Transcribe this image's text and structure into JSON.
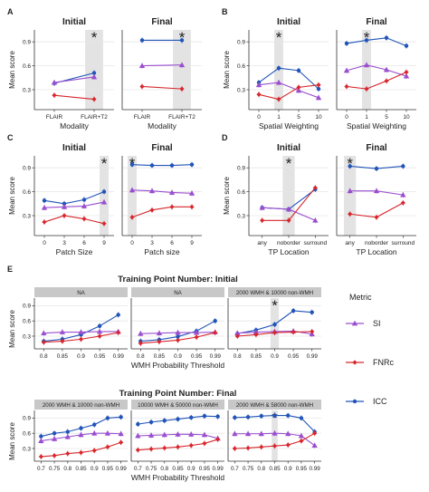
{
  "colors": {
    "SI": "#9a4fcf",
    "FNRc": "#d7262c",
    "ICC": "#2054b8",
    "grid": "#e6e6e6",
    "strip": "#c8c8c8",
    "shade": "#e3e3e3",
    "axis": "#333333"
  },
  "legend": {
    "title": "Metric",
    "items": [
      {
        "key": "SI",
        "label": "SI"
      },
      {
        "key": "FNRc",
        "label": "FNRc"
      },
      {
        "key": "ICC",
        "label": "ICC"
      }
    ]
  },
  "star": "*",
  "panels": [
    {
      "letter": "A",
      "subtitles": [
        "Initial",
        "Final"
      ],
      "xlabels": [
        "Modality",
        "Modality"
      ],
      "ylabel": "Mean score",
      "yticks": [
        0.3,
        0.6,
        0.9
      ],
      "categories": [
        "FLAIR",
        "FLAIR+T2"
      ],
      "star_index": 1
    },
    {
      "letter": "B",
      "subtitles": [
        "Initial",
        "Final"
      ],
      "xlabels": [
        "Spatial Weighting",
        "Spatial Weighting"
      ],
      "ylabel": "Mean score",
      "yticks": [
        0.3,
        0.6,
        0.9
      ],
      "categories": [
        "0",
        "1",
        "5",
        "10"
      ],
      "star_index": 1
    },
    {
      "letter": "C",
      "subtitles": [
        "Initial",
        "Final"
      ],
      "xlabels": [
        "Patch Size",
        "Patch size"
      ],
      "ylabel": "Mean score",
      "yticks": [
        0.3,
        0.6,
        0.9
      ],
      "categories": [
        "0",
        "3",
        "6",
        "9"
      ],
      "star_index": [
        3,
        0
      ]
    },
    {
      "letter": "D",
      "subtitles": [
        "Initial",
        "Final"
      ],
      "xlabels": [
        "TP Location",
        "TP Location"
      ],
      "ylabel": "Mean score",
      "yticks": [
        0.3,
        0.6,
        0.9
      ],
      "categories": [
        "any",
        "noborder",
        "surround"
      ],
      "star_index": [
        1,
        0
      ]
    },
    {
      "letter": "E",
      "titles": [
        "Training Point Number: Initial",
        "Training Point Number: Final"
      ],
      "strips_top": [
        "NA",
        "NA",
        "2000 WMH & 10000 non-WMH"
      ],
      "strips_bottom": [
        "2000 WMH & 10000 non-WMH",
        "10000 WMH & 50000 non-WMH",
        "2000 WMH & 58000 non-WMH"
      ],
      "xlabel": "WMH Probability Threshold",
      "ylabel": "Mean score",
      "yticks": [
        0.3,
        0.6,
        0.9
      ],
      "categories_top": [
        "0.8",
        "0.85",
        "0.9",
        "0.95",
        "0.99"
      ],
      "categories_bottom": [
        "0.7",
        "0.75",
        "0.8",
        "0.85",
        "0.9",
        "0.95",
        "0.99"
      ]
    }
  ],
  "chart_data": [
    {
      "type": "line",
      "panel": "A",
      "subtitle": "Initial",
      "xlabel": "Modality",
      "ylabel": "Mean score",
      "categories": [
        "FLAIR",
        "FLAIR+T2"
      ],
      "ylim": [
        0.05,
        1.05
      ],
      "series": [
        {
          "name": "ICC",
          "values": [
            0.38,
            0.51
          ]
        },
        {
          "name": "SI",
          "values": [
            0.39,
            0.46
          ]
        },
        {
          "name": "FNRc",
          "values": [
            0.23,
            0.18
          ]
        }
      ]
    },
    {
      "type": "line",
      "panel": "A",
      "subtitle": "Final",
      "xlabel": "Modality",
      "ylabel": "Mean score",
      "categories": [
        "FLAIR",
        "FLAIR+T2"
      ],
      "ylim": [
        0.05,
        1.05
      ],
      "series": [
        {
          "name": "ICC",
          "values": [
            0.92,
            0.92
          ]
        },
        {
          "name": "SI",
          "values": [
            0.6,
            0.61
          ]
        },
        {
          "name": "FNRc",
          "values": [
            0.34,
            0.31
          ]
        }
      ]
    },
    {
      "type": "line",
      "panel": "B",
      "subtitle": "Initial",
      "xlabel": "Spatial Weighting",
      "ylabel": "Mean score",
      "categories": [
        "0",
        "1",
        "5",
        "10"
      ],
      "ylim": [
        0.05,
        1.05
      ],
      "series": [
        {
          "name": "ICC",
          "values": [
            0.39,
            0.57,
            0.54,
            0.31
          ]
        },
        {
          "name": "SI",
          "values": [
            0.36,
            0.39,
            0.29,
            0.2
          ]
        },
        {
          "name": "FNRc",
          "values": [
            0.24,
            0.18,
            0.33,
            0.36
          ]
        }
      ]
    },
    {
      "type": "line",
      "panel": "B",
      "subtitle": "Final",
      "xlabel": "Spatial Weighting",
      "ylabel": "Mean score",
      "categories": [
        "0",
        "1",
        "5",
        "10"
      ],
      "ylim": [
        0.05,
        1.05
      ],
      "series": [
        {
          "name": "ICC",
          "values": [
            0.88,
            0.92,
            0.95,
            0.85
          ]
        },
        {
          "name": "SI",
          "values": [
            0.54,
            0.61,
            0.55,
            0.47
          ]
        },
        {
          "name": "FNRc",
          "values": [
            0.34,
            0.31,
            0.41,
            0.52
          ]
        }
      ]
    },
    {
      "type": "line",
      "panel": "C",
      "subtitle": "Initial",
      "xlabel": "Patch Size",
      "ylabel": "Mean score",
      "categories": [
        "0",
        "3",
        "6",
        "9"
      ],
      "ylim": [
        0.05,
        1.05
      ],
      "series": [
        {
          "name": "ICC",
          "values": [
            0.49,
            0.45,
            0.5,
            0.6
          ]
        },
        {
          "name": "SI",
          "values": [
            0.4,
            0.41,
            0.42,
            0.47
          ]
        },
        {
          "name": "FNRc",
          "values": [
            0.22,
            0.3,
            0.26,
            0.2
          ]
        }
      ]
    },
    {
      "type": "line",
      "panel": "C",
      "subtitle": "Final",
      "xlabel": "Patch size",
      "ylabel": "Mean score",
      "categories": [
        "0",
        "3",
        "6",
        "9"
      ],
      "ylim": [
        0.05,
        1.05
      ],
      "series": [
        {
          "name": "ICC",
          "values": [
            0.94,
            0.93,
            0.93,
            0.94
          ]
        },
        {
          "name": "SI",
          "values": [
            0.62,
            0.61,
            0.59,
            0.58
          ]
        },
        {
          "name": "FNRc",
          "values": [
            0.28,
            0.37,
            0.41,
            0.41
          ]
        }
      ]
    },
    {
      "type": "line",
      "panel": "D",
      "subtitle": "Initial",
      "xlabel": "TP Location",
      "ylabel": "Mean score",
      "categories": [
        "any",
        "noborder",
        "surround"
      ],
      "ylim": [
        0.05,
        1.05
      ],
      "series": [
        {
          "name": "ICC",
          "values": [
            0.4,
            0.38,
            0.63
          ]
        },
        {
          "name": "SI",
          "values": [
            0.4,
            0.38,
            0.24
          ]
        },
        {
          "name": "FNRc",
          "values": [
            0.24,
            0.24,
            0.65
          ]
        }
      ]
    },
    {
      "type": "line",
      "panel": "D",
      "subtitle": "Final",
      "xlabel": "TP Location",
      "ylabel": "Mean score",
      "categories": [
        "any",
        "noborder",
        "surround"
      ],
      "ylim": [
        0.05,
        1.05
      ],
      "series": [
        {
          "name": "ICC",
          "values": [
            0.92,
            0.89,
            0.92
          ]
        },
        {
          "name": "SI",
          "values": [
            0.61,
            0.61,
            0.56
          ]
        },
        {
          "name": "FNRc",
          "values": [
            0.32,
            0.28,
            0.46
          ]
        }
      ]
    },
    {
      "type": "line",
      "panel": "E",
      "title": "Training Point Number: Initial",
      "strip": "NA",
      "xlabel": "WMH Probability Threshold",
      "ylabel": "Mean score",
      "categories": [
        "0.8",
        "0.85",
        "0.9",
        "0.95",
        "0.99"
      ],
      "ylim": [
        0.05,
        1.05
      ],
      "series": [
        {
          "name": "ICC",
          "values": [
            0.2,
            0.24,
            0.33,
            0.5,
            0.72
          ]
        },
        {
          "name": "SI",
          "values": [
            0.36,
            0.38,
            0.38,
            0.39,
            0.39
          ]
        },
        {
          "name": "FNRc",
          "values": [
            0.18,
            0.2,
            0.24,
            0.3,
            0.37
          ]
        }
      ]
    },
    {
      "type": "line",
      "panel": "E",
      "title": "Training Point Number: Initial",
      "strip": "NA",
      "xlabel": "WMH Probability Threshold",
      "ylabel": "Mean score",
      "categories": [
        "0.8",
        "0.85",
        "0.9",
        "0.95",
        "0.99"
      ],
      "ylim": [
        0.05,
        1.05
      ],
      "series": [
        {
          "name": "ICC",
          "values": [
            0.2,
            0.23,
            0.29,
            0.4,
            0.6
          ]
        },
        {
          "name": "SI",
          "values": [
            0.35,
            0.36,
            0.37,
            0.37,
            0.38
          ]
        },
        {
          "name": "FNRc",
          "values": [
            0.16,
            0.19,
            0.22,
            0.28,
            0.37
          ]
        }
      ]
    },
    {
      "type": "line",
      "panel": "E",
      "title": "Training Point Number: Initial",
      "strip": "2000 WMH & 10000 non-WMH",
      "xlabel": "WMH Probability Threshold",
      "ylabel": "Mean score",
      "categories": [
        "0.8",
        "0.85",
        "0.9",
        "0.95",
        "0.99"
      ],
      "ylim": [
        0.05,
        1.05
      ],
      "series": [
        {
          "name": "ICC",
          "values": [
            0.35,
            0.42,
            0.53,
            0.8,
            0.77
          ]
        },
        {
          "name": "SI",
          "values": [
            0.36,
            0.38,
            0.39,
            0.4,
            0.34
          ]
        },
        {
          "name": "FNRc",
          "values": [
            0.3,
            0.33,
            0.37,
            0.38,
            0.39
          ]
        }
      ]
    },
    {
      "type": "line",
      "panel": "E",
      "title": "Training Point Number: Final",
      "strip": "2000 WMH & 10000 non-WMH",
      "xlabel": "WMH Probability Threshold",
      "ylabel": "Mean score",
      "categories": [
        "0.7",
        "0.75",
        "0.8",
        "0.85",
        "0.9",
        "0.95",
        "0.99"
      ],
      "ylim": [
        0.05,
        1.05
      ],
      "series": [
        {
          "name": "ICC",
          "values": [
            0.54,
            0.6,
            0.63,
            0.7,
            0.77,
            0.9,
            0.92
          ]
        },
        {
          "name": "SI",
          "values": [
            0.45,
            0.49,
            0.53,
            0.57,
            0.6,
            0.6,
            0.59
          ]
        },
        {
          "name": "FNRc",
          "values": [
            0.14,
            0.16,
            0.2,
            0.22,
            0.26,
            0.33,
            0.42
          ]
        }
      ]
    },
    {
      "type": "line",
      "panel": "E",
      "title": "Training Point Number: Final",
      "strip": "10000 WMH & 50000 non-WMH",
      "xlabel": "WMH Probability Threshold",
      "ylabel": "Mean score",
      "categories": [
        "0.7",
        "0.75",
        "0.8",
        "0.85",
        "0.9",
        "0.95",
        "0.99"
      ],
      "ylim": [
        0.05,
        1.05
      ],
      "series": [
        {
          "name": "ICC",
          "values": [
            0.78,
            0.82,
            0.85,
            0.88,
            0.91,
            0.94,
            0.93
          ]
        },
        {
          "name": "SI",
          "values": [
            0.55,
            0.56,
            0.57,
            0.58,
            0.58,
            0.57,
            0.5
          ]
        },
        {
          "name": "FNRc",
          "values": [
            0.27,
            0.29,
            0.31,
            0.33,
            0.36,
            0.4,
            0.48
          ]
        }
      ]
    },
    {
      "type": "line",
      "panel": "E",
      "title": "Training Point Number: Final",
      "strip": "2000 WMH & 58000 non-WMH",
      "xlabel": "WMH Probability Threshold",
      "ylabel": "Mean score",
      "categories": [
        "0.7",
        "0.75",
        "0.8",
        "0.85",
        "0.9",
        "0.95",
        "0.99"
      ],
      "ylim": [
        0.05,
        1.05
      ],
      "series": [
        {
          "name": "ICC",
          "values": [
            0.91,
            0.92,
            0.94,
            0.95,
            0.95,
            0.9,
            0.63
          ]
        },
        {
          "name": "SI",
          "values": [
            0.59,
            0.59,
            0.59,
            0.6,
            0.59,
            0.55,
            0.36
          ]
        },
        {
          "name": "FNRc",
          "values": [
            0.3,
            0.31,
            0.33,
            0.35,
            0.37,
            0.45,
            0.6
          ]
        }
      ]
    }
  ]
}
